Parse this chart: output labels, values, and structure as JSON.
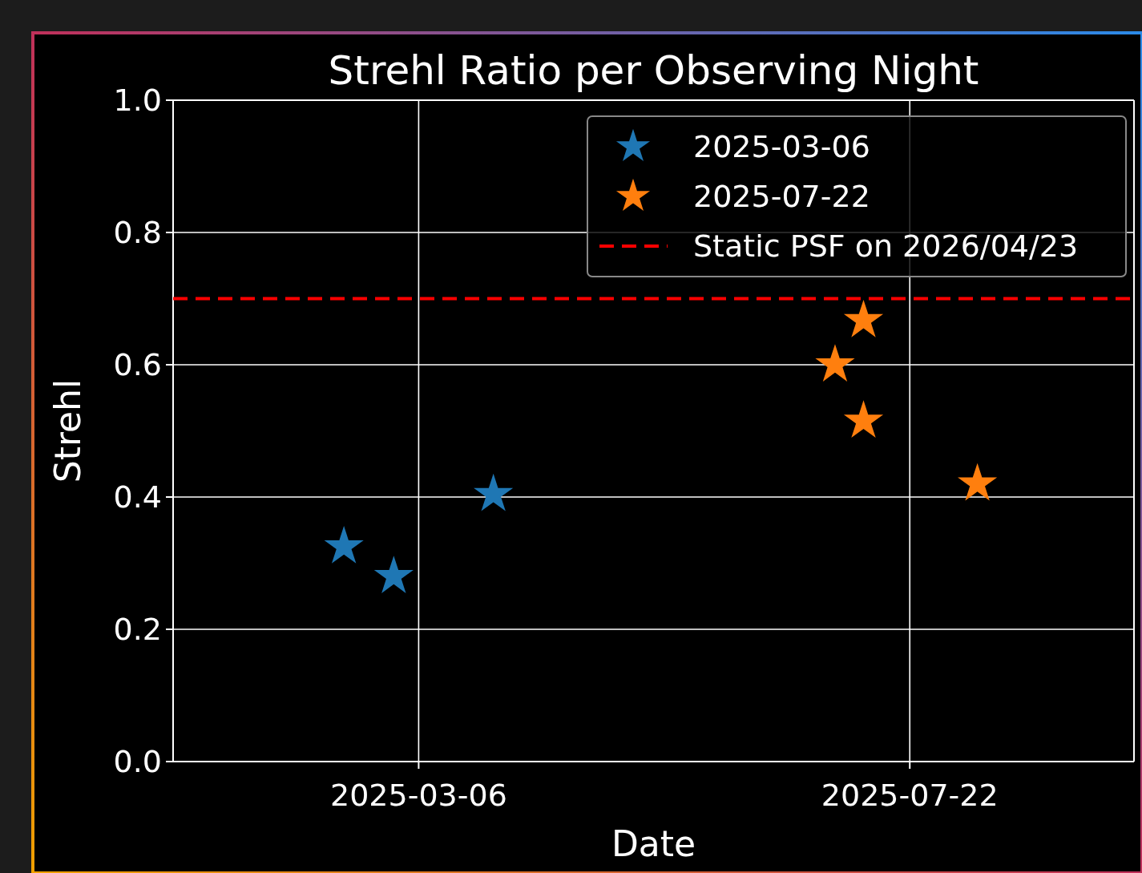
{
  "chart_data": {
    "type": "scatter",
    "title": "Strehl Ratio per Observing Night",
    "xlabel": "Date",
    "ylabel": "Strehl",
    "xlim": [
      "2024-12-27",
      "2025-09-23"
    ],
    "xticks": [
      "2025-03-06",
      "2025-07-22"
    ],
    "ylim": [
      0,
      1
    ],
    "yticks": [
      {
        "value": 0,
        "label": "0.0"
      },
      0.2,
      0.4,
      0.6,
      0.8,
      {
        "value": 1,
        "label": "1.0"
      }
    ],
    "grid": true,
    "legend": "top right",
    "marker": "star",
    "series": [
      {
        "name": "2025-03-06",
        "color": "#1f77b4",
        "x": [
          "2025-02-13",
          "2025-02-27",
          "2025-03-27"
        ],
        "values": [
          0.325,
          0.28,
          0.404
        ]
      },
      {
        "name": "2025-07-22",
        "color": "#ff7f0e",
        "x": [
          "2025-07-01",
          "2025-07-09",
          "2025-07-09",
          "2025-08-10"
        ],
        "values": [
          0.6,
          0.667,
          0.515,
          0.42
        ]
      }
    ],
    "ref_lines": [
      {
        "axis": "y",
        "value": 0.7,
        "label": "Static PSF on 2026/04/23",
        "color": "#ff0000",
        "line_style": "dashed"
      }
    ]
  }
}
